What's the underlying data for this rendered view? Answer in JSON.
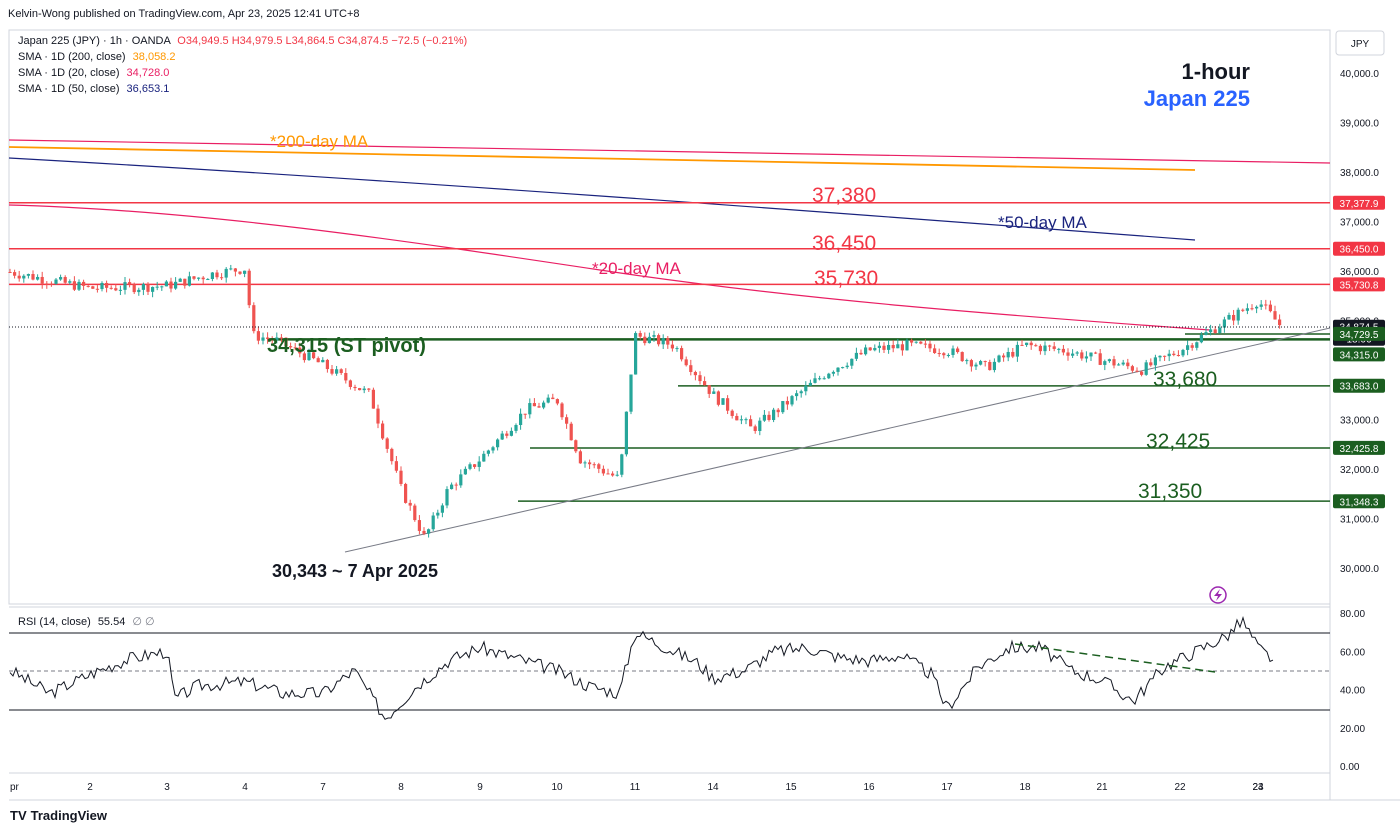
{
  "header": {
    "published": "Kelvin-Wong published on TradingView.com, Apr 23, 2025 12:41 UTC+8",
    "symbol_line": "Japan 225 (JPY) · 1h · OANDA",
    "ohlc": "O34,949.5 H34,979.5 L34,864.5 C34,874.5 −72.5 (−0.21%)",
    "sma200_label": "SMA · 1D (200, close)",
    "sma200_value": "38,058.2",
    "sma20_label": "SMA · 1D (20, close)",
    "sma20_value": "34,728.0",
    "sma50_label": "SMA · 1D (50, close)",
    "sma50_value": "36,653.1",
    "rsi_label": "RSI (14, close)",
    "rsi_value": "55.54",
    "rsi_extra": "∅ ∅"
  },
  "colors": {
    "up": "#26a69a",
    "down": "#ef5350",
    "sma200": "#ff9800",
    "sma20": "#e91e63",
    "sma50": "#1a237e",
    "resistance": "#f23645",
    "support": "#1b5e20",
    "title_blue": "#2962ff"
  },
  "annotations": {
    "title_timeframe": "1-hour",
    "title_instrument": "Japan 225",
    "ma200": "*200-day MA",
    "ma50": "*50-day MA",
    "ma20": "*20-day MA",
    "r1": "37,380",
    "r2": "36,450",
    "r3": "35,730",
    "pivot": "34,315 (ST pivot)",
    "s1": "33,680",
    "s2": "32,425",
    "s3": "31,350",
    "low": "30,343 ~ 7 Apr 2025"
  },
  "price_axis": {
    "currency": "JPY",
    "ticks": [
      "40,000.0",
      "39,000.0",
      "38,000.0",
      "37,000.0",
      "36,000.0",
      "35,000.0",
      "33,000.0",
      "32,000.0",
      "31,000.0",
      "30,000.0"
    ],
    "badges": [
      {
        "text": "37,377.9",
        "value": 37377.9,
        "color": "#f23645"
      },
      {
        "text": "36,450.0",
        "value": 36450.0,
        "color": "#f23645"
      },
      {
        "text": "35,730.8",
        "value": 35730.8,
        "color": "#f23645"
      },
      {
        "text": "34,874.5",
        "sub": "18:06",
        "value": 34874.5,
        "color": "#131722"
      },
      {
        "text": "34,729.5",
        "value": 34729.5,
        "color": "#1b5e20"
      },
      {
        "text": "34,315.0",
        "value": 34315.0,
        "color": "#1b5e20"
      },
      {
        "text": "33,683.0",
        "value": 33683.0,
        "color": "#1b5e20"
      },
      {
        "text": "32,425.8",
        "value": 32425.8,
        "color": "#1b5e20"
      },
      {
        "text": "31,348.3",
        "value": 31348.3,
        "color": "#1b5e20"
      }
    ]
  },
  "rsi_axis": {
    "ticks": [
      "80.00",
      "60.00",
      "40.00",
      "20.00",
      "0.00"
    ]
  },
  "time_axis": {
    "labels": [
      "pr",
      "2",
      "3",
      "4",
      "7",
      "8",
      "9",
      "10",
      "11",
      "14",
      "15",
      "16",
      "17",
      "18",
      "21",
      "22",
      "23",
      "24"
    ]
  },
  "footer": {
    "brand": "TradingView"
  },
  "chart_data": {
    "type": "candlestick",
    "symbol": "Japan 225 (JPY)",
    "interval": "1h",
    "ylim": [
      29600,
      40400
    ],
    "x": [
      "Apr 1",
      "Apr 2",
      "Apr 3",
      "Apr 4",
      "Apr 7",
      "Apr 8",
      "Apr 9",
      "Apr 10",
      "Apr 11",
      "Apr 14",
      "Apr 15",
      "Apr 16",
      "Apr 17",
      "Apr 18",
      "Apr 21",
      "Apr 22",
      "Apr 23"
    ],
    "approx_close_path": [
      [
        0,
        35980
      ],
      [
        1,
        35650
      ],
      [
        2,
        35700
      ],
      [
        2.6,
        35950
      ],
      [
        3,
        36050
      ],
      [
        3.1,
        34700
      ],
      [
        3.4,
        34600
      ],
      [
        4,
        34100
      ],
      [
        4.6,
        33500
      ],
      [
        5,
        31600
      ],
      [
        5.3,
        30600
      ],
      [
        5.6,
        31600
      ],
      [
        6,
        32200
      ],
      [
        6.6,
        33200
      ],
      [
        7,
        33400
      ],
      [
        7.3,
        32200
      ],
      [
        7.8,
        31800
      ],
      [
        8,
        34700
      ],
      [
        8.5,
        34500
      ],
      [
        9,
        33500
      ],
      [
        9.5,
        32800
      ],
      [
        10,
        33400
      ],
      [
        10.5,
        34000
      ],
      [
        11,
        34400
      ],
      [
        11.5,
        34500
      ],
      [
        12,
        34400
      ],
      [
        12.5,
        34050
      ],
      [
        13,
        34500
      ],
      [
        13.5,
        34400
      ],
      [
        14,
        34200
      ],
      [
        14.5,
        34000
      ],
      [
        15,
        34400
      ],
      [
        15.5,
        34900
      ],
      [
        16,
        35400
      ],
      [
        16.3,
        34874.5
      ]
    ],
    "ohlc_last": {
      "open": 34949.5,
      "high": 34979.5,
      "low": 34864.5,
      "close": 34874.5,
      "change": -72.5,
      "change_pct": -0.21
    },
    "sma": [
      {
        "name": "SMA 1D (200, close)",
        "value": 38058.2
      },
      {
        "name": "SMA 1D (20, close)",
        "value": 34728.0
      },
      {
        "name": "SMA 1D (50, close)",
        "value": 36653.1
      }
    ],
    "horizontal_levels": {
      "resistance": [
        37380,
        36450,
        35730
      ],
      "pivot": 34315,
      "support": [
        33680,
        32425,
        31350
      ]
    },
    "swing_low": {
      "value": 30343,
      "date": "7 Apr 2025"
    },
    "rsi": {
      "period": 14,
      "last": 55.54,
      "levels": [
        70,
        50,
        30
      ],
      "ylim": [
        0,
        85
      ],
      "approx_path": [
        [
          0,
          50
        ],
        [
          0.5,
          38
        ],
        [
          1,
          48
        ],
        [
          1.5,
          56
        ],
        [
          2,
          60
        ],
        [
          2.1,
          35
        ],
        [
          2.4,
          42
        ],
        [
          3,
          44
        ],
        [
          3.5,
          38
        ],
        [
          4,
          38
        ],
        [
          4.4,
          50
        ],
        [
          4.8,
          25
        ],
        [
          5.2,
          42
        ],
        [
          5.6,
          55
        ],
        [
          6,
          62
        ],
        [
          6.5,
          56
        ],
        [
          7,
          50
        ],
        [
          7.4,
          42
        ],
        [
          7.8,
          38
        ],
        [
          8,
          70
        ],
        [
          8.4,
          62
        ],
        [
          8.8,
          54
        ],
        [
          9,
          46
        ],
        [
          9.4,
          50
        ],
        [
          9.8,
          60
        ],
        [
          10.2,
          62
        ],
        [
          10.6,
          57
        ],
        [
          11,
          55
        ],
        [
          11.4,
          58
        ],
        [
          11.8,
          48
        ],
        [
          12,
          30
        ],
        [
          12.4,
          52
        ],
        [
          12.8,
          62
        ],
        [
          13.2,
          62
        ],
        [
          13.6,
          50
        ],
        [
          14,
          45
        ],
        [
          14.4,
          34
        ],
        [
          14.8,
          52
        ],
        [
          15.2,
          60
        ],
        [
          15.6,
          68
        ],
        [
          15.8,
          76
        ],
        [
          16,
          62
        ],
        [
          16.2,
          55.54
        ]
      ]
    }
  }
}
